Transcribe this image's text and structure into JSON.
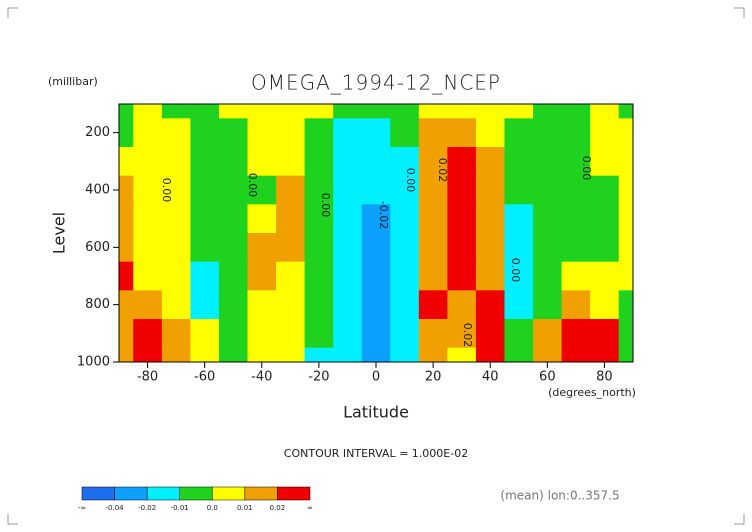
{
  "chart_data": {
    "type": "contour",
    "title": "OMEGA_1994-12_NCEP",
    "y_unit": "(millibar)",
    "ylabel": "Level",
    "xlabel": "Latitude",
    "x_unit": "(degrees_north)",
    "contour_interval": "CONTOUR INTERVAL = 1.000E-02",
    "footnote": "(mean) lon:0..357.5",
    "x": [
      -90,
      -80,
      -70,
      -60,
      -50,
      -40,
      -30,
      -20,
      -10,
      0,
      10,
      20,
      30,
      40,
      50,
      60,
      70,
      80,
      90
    ],
    "y": [
      100,
      200,
      300,
      400,
      500,
      600,
      700,
      800,
      900,
      1000
    ],
    "z": [
      [
        -0.005,
        0.005,
        -0.005,
        -0.005,
        0.005,
        0.005,
        0.005,
        0.005,
        -0.005,
        -0.005,
        -0.005,
        0.005,
        0.005,
        0.005,
        0.005,
        -0.005,
        -0.005,
        0.005,
        -0.005
      ],
      [
        -0.005,
        0.005,
        0.005,
        -0.005,
        -0.005,
        0.005,
        0.005,
        -0.005,
        -0.015,
        -0.015,
        -0.005,
        0.015,
        0.015,
        0.005,
        -0.005,
        -0.005,
        -0.005,
        0.005,
        0.005
      ],
      [
        0.005,
        0.005,
        0.005,
        -0.005,
        -0.005,
        0.005,
        0.005,
        -0.005,
        -0.015,
        -0.015,
        -0.015,
        0.015,
        0.025,
        0.015,
        -0.005,
        -0.005,
        -0.005,
        0.005,
        0.005
      ],
      [
        0.015,
        0.005,
        0.005,
        -0.005,
        -0.005,
        -0.005,
        0.015,
        -0.005,
        -0.015,
        -0.015,
        -0.015,
        0.015,
        0.025,
        0.015,
        -0.005,
        -0.005,
        -0.005,
        -0.005,
        0.005
      ],
      [
        0.015,
        0.005,
        0.005,
        -0.005,
        -0.005,
        0.005,
        0.015,
        -0.005,
        -0.015,
        -0.03,
        -0.015,
        0.015,
        0.025,
        0.015,
        -0.015,
        -0.005,
        -0.005,
        -0.005,
        0.005
      ],
      [
        0.015,
        0.005,
        0.005,
        -0.005,
        -0.005,
        0.015,
        0.015,
        -0.005,
        -0.015,
        -0.03,
        -0.015,
        0.015,
        0.025,
        0.015,
        -0.015,
        -0.005,
        -0.005,
        -0.005,
        0.005
      ],
      [
        0.025,
        0.005,
        0.005,
        -0.015,
        -0.005,
        0.015,
        0.005,
        -0.005,
        -0.015,
        -0.03,
        -0.015,
        0.015,
        0.025,
        0.015,
        -0.015,
        -0.005,
        0.005,
        0.005,
        0.005
      ],
      [
        0.015,
        0.015,
        0.005,
        -0.015,
        -0.005,
        0.005,
        0.005,
        -0.005,
        -0.015,
        -0.03,
        -0.015,
        0.025,
        0.015,
        0.025,
        -0.015,
        -0.005,
        0.015,
        0.005,
        -0.005
      ],
      [
        0.015,
        0.025,
        0.015,
        0.005,
        -0.005,
        0.005,
        0.005,
        -0.005,
        -0.015,
        -0.03,
        -0.015,
        0.015,
        0.015,
        0.025,
        -0.005,
        0.015,
        0.025,
        0.025,
        -0.005
      ],
      [
        0.015,
        0.025,
        0.015,
        0.005,
        -0.005,
        0.005,
        0.005,
        -0.015,
        -0.015,
        -0.03,
        -0.015,
        0.015,
        0.005,
        0.025,
        -0.005,
        0.015,
        0.025,
        0.025,
        -0.005
      ]
    ],
    "xlim": [
      -90,
      90
    ],
    "ylim": [
      1000,
      100
    ],
    "xticks": [
      -80,
      -60,
      -40,
      -20,
      0,
      20,
      40,
      60,
      80
    ],
    "yticks": [
      200,
      400,
      600,
      800,
      1000
    ],
    "levels": [
      -0.04,
      -0.02,
      -0.01,
      {
        "value": 0,
        "label": "0.0"
      },
      0.01,
      0.02
    ],
    "level_ends": [
      "-∞",
      "∞"
    ],
    "colors": [
      "#1e6ef0",
      "#0ca0ff",
      "#00f0ff",
      "#1ed21e",
      "#ffff00",
      "#f0a000",
      "#f00000"
    ],
    "contour_labels": [
      "0.00",
      "0.00",
      "0.00",
      "0.00",
      "-0.02",
      "0.02",
      "0.00",
      "0.00",
      "0.02"
    ]
  }
}
